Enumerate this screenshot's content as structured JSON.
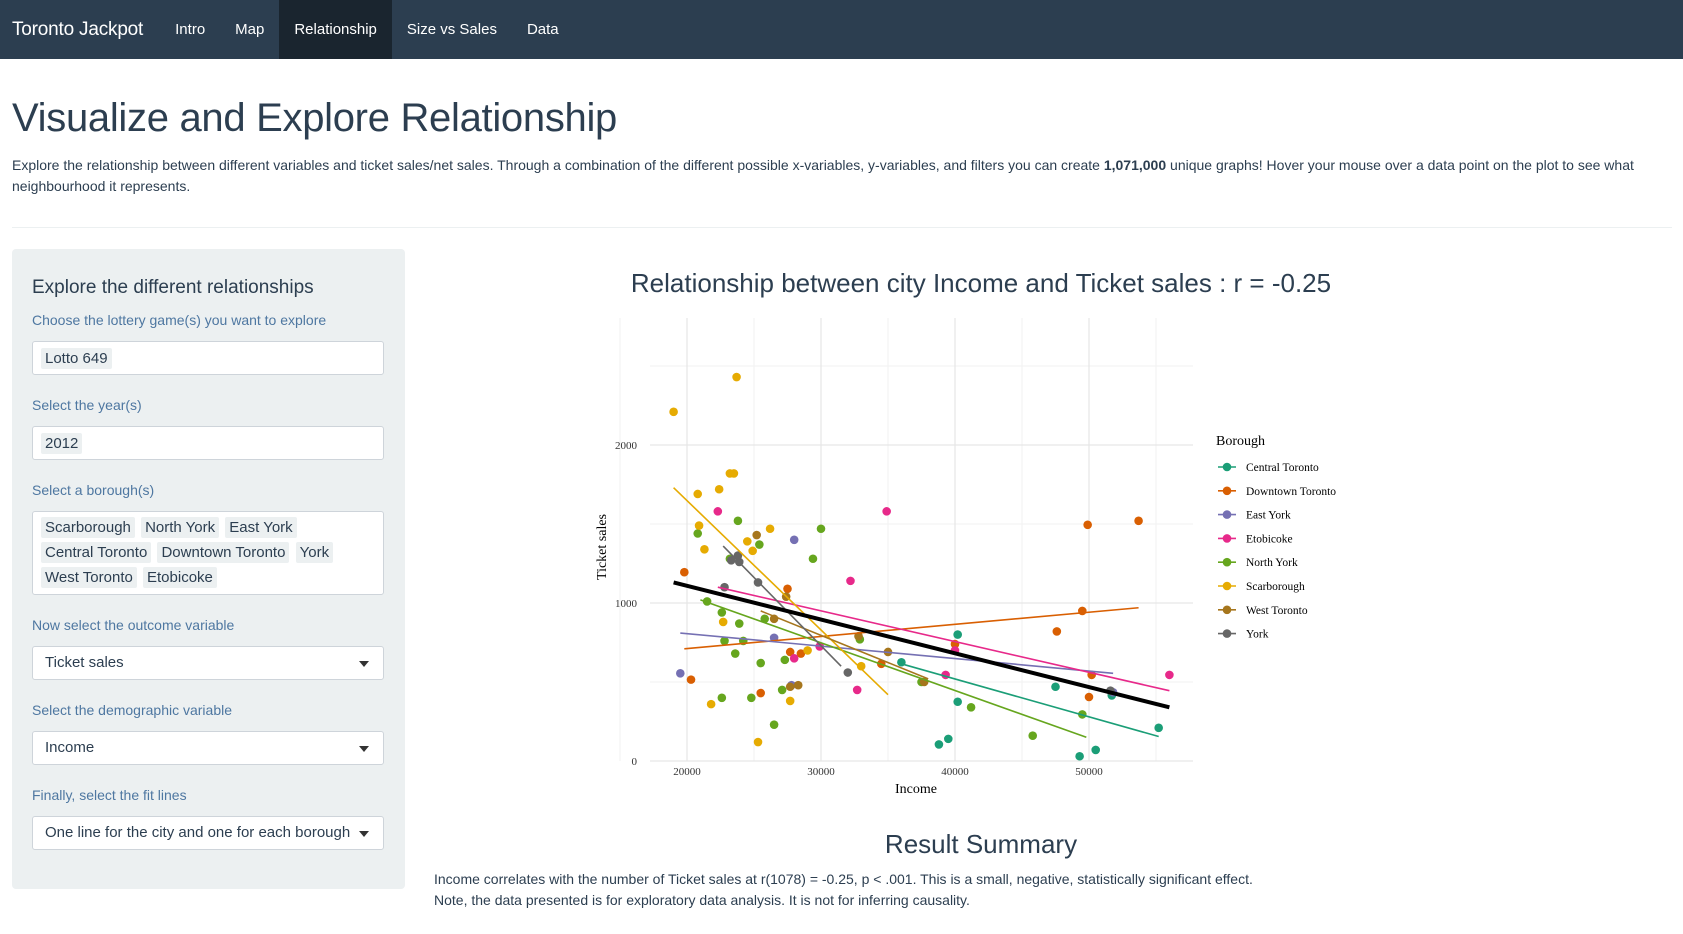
{
  "navbar": {
    "brand": "Toronto Jackpot",
    "items": [
      "Intro",
      "Map",
      "Relationship",
      "Size vs Sales",
      "Data"
    ],
    "active": "Relationship",
    "bg_color": "#2c3e50",
    "active_bg_color": "#1a252f"
  },
  "page": {
    "title": "Visualize and Explore Relationship",
    "intro_before": "Explore the relationship between different variables and ticket sales/net sales. Through a combination of the different possible x-variables, y-variables, and filters you can create ",
    "intro_bold": "1,071,000",
    "intro_after": " unique graphs! Hover your mouse over a data point on the plot to see what neighbourhood it represents."
  },
  "sidebar": {
    "title": "Explore the different relationships",
    "game_label": "Choose the lottery game(s) you want to explore",
    "games": [
      "Lotto 649"
    ],
    "year_label": "Select the year(s)",
    "years": [
      "2012"
    ],
    "borough_label": "Select a borough(s)",
    "boroughs": [
      "Scarborough",
      "North York",
      "East York",
      "Central Toronto",
      "Downtown Toronto",
      "York",
      "West Toronto",
      "Etobicoke"
    ],
    "outcome_label": "Now select the outcome variable",
    "outcome_value": "Ticket sales",
    "demographic_label": "Select the demographic variable",
    "demographic_value": "Income",
    "fit_label": "Finally, select the fit lines",
    "fit_value": "One line for the city and one for each borough"
  },
  "chart_data": {
    "type": "scatter",
    "title": "Relationship between city Income and Ticket sales : r = -0.25",
    "xlabel": "Income",
    "ylabel": "Ticket sales",
    "xlim": [
      16000,
      58000
    ],
    "ylim": [
      0,
      2800
    ],
    "xticks": [
      20000,
      30000,
      40000,
      50000
    ],
    "yticks": [
      0,
      1000,
      2000
    ],
    "grid": true,
    "legend_title": "Borough",
    "legend_position": "right",
    "city_fit": {
      "x": [
        19000,
        56000
      ],
      "y": [
        1130,
        340
      ],
      "color": "#000000"
    },
    "series": [
      {
        "name": "Central Toronto",
        "color": "#1b9e77",
        "points": [
          [
            36000,
            625
          ],
          [
            40200,
            800
          ],
          [
            40200,
            375
          ],
          [
            39500,
            140
          ],
          [
            38800,
            105
          ],
          [
            47500,
            470
          ],
          [
            51700,
            415
          ],
          [
            55200,
            210
          ],
          [
            50500,
            70
          ],
          [
            49300,
            30
          ]
        ],
        "fit": [
          [
            36000,
            615
          ],
          [
            55200,
            155
          ]
        ]
      },
      {
        "name": "Downtown Toronto",
        "color": "#d95f02",
        "points": [
          [
            19800,
            1195
          ],
          [
            20300,
            515
          ],
          [
            25500,
            430
          ],
          [
            27500,
            1090
          ],
          [
            27700,
            690
          ],
          [
            28500,
            680
          ],
          [
            34500,
            615
          ],
          [
            40000,
            740
          ],
          [
            47600,
            820
          ],
          [
            49500,
            950
          ],
          [
            49900,
            1495
          ],
          [
            50200,
            545
          ],
          [
            50000,
            405
          ],
          [
            53700,
            1520
          ]
        ],
        "fit": [
          [
            19800,
            710
          ],
          [
            53700,
            970
          ]
        ]
      },
      {
        "name": "East York",
        "color": "#7570b3",
        "points": [
          [
            19500,
            555
          ],
          [
            28000,
            1400
          ],
          [
            27800,
            480
          ],
          [
            26500,
            780
          ],
          [
            51800,
            435
          ]
        ],
        "fit": [
          [
            19500,
            810
          ],
          [
            51800,
            555
          ]
        ]
      },
      {
        "name": "Etobicoke",
        "color": "#e7298a",
        "points": [
          [
            22300,
            1580
          ],
          [
            28000,
            650
          ],
          [
            29900,
            725
          ],
          [
            32200,
            1140
          ],
          [
            32700,
            450
          ],
          [
            34900,
            1580
          ],
          [
            40000,
            700
          ],
          [
            39300,
            545
          ],
          [
            56000,
            545
          ]
        ],
        "fit": [
          [
            22300,
            1100
          ],
          [
            56000,
            445
          ]
        ]
      },
      {
        "name": "North York",
        "color": "#66a61e",
        "points": [
          [
            20800,
            1440
          ],
          [
            21500,
            1010
          ],
          [
            22600,
            940
          ],
          [
            23200,
            1280
          ],
          [
            23800,
            1520
          ],
          [
            23900,
            870
          ],
          [
            24200,
            760
          ],
          [
            24800,
            400
          ],
          [
            25400,
            1370
          ],
          [
            25500,
            620
          ],
          [
            25800,
            900
          ],
          [
            26500,
            230
          ],
          [
            27300,
            640
          ],
          [
            27100,
            450
          ],
          [
            29400,
            1280
          ],
          [
            30000,
            1470
          ],
          [
            32900,
            770
          ],
          [
            37500,
            500
          ],
          [
            41200,
            340
          ],
          [
            45800,
            160
          ],
          [
            49500,
            295
          ],
          [
            22800,
            760
          ],
          [
            23600,
            680
          ],
          [
            22600,
            400
          ]
        ],
        "fit": [
          [
            21000,
            1020
          ],
          [
            49800,
            150
          ]
        ]
      },
      {
        "name": "Scarborough",
        "color": "#e6ab02",
        "points": [
          [
            19000,
            2210
          ],
          [
            20800,
            1690
          ],
          [
            20900,
            1490
          ],
          [
            21300,
            1340
          ],
          [
            22400,
            1720
          ],
          [
            22700,
            880
          ],
          [
            23200,
            1820
          ],
          [
            23500,
            1820
          ],
          [
            23700,
            2430
          ],
          [
            24500,
            1390
          ],
          [
            24900,
            1330
          ],
          [
            26200,
            1470
          ],
          [
            27700,
            380
          ],
          [
            29000,
            700
          ],
          [
            33000,
            600
          ],
          [
            25300,
            120
          ],
          [
            21800,
            360
          ]
        ],
        "fit": [
          [
            19000,
            1730
          ],
          [
            35000,
            420
          ]
        ]
      },
      {
        "name": "West Toronto",
        "color": "#a6761d",
        "points": [
          [
            25200,
            1430
          ],
          [
            27400,
            1040
          ],
          [
            27700,
            470
          ],
          [
            28300,
            480
          ],
          [
            32800,
            790
          ],
          [
            35000,
            690
          ],
          [
            37700,
            500
          ],
          [
            26500,
            900
          ]
        ],
        "fit": [
          [
            25500,
            950
          ],
          [
            38000,
            520
          ]
        ]
      },
      {
        "name": "York",
        "color": "#666666",
        "points": [
          [
            22800,
            1100
          ],
          [
            23300,
            1270
          ],
          [
            23800,
            1300
          ],
          [
            23900,
            1260
          ],
          [
            25300,
            1130
          ],
          [
            32000,
            560
          ],
          [
            51600,
            445
          ]
        ],
        "fit": [
          [
            22700,
            1360
          ],
          [
            31500,
            600
          ]
        ]
      }
    ]
  },
  "summary": {
    "title": "Result Summary",
    "line1": "Income correlates with the number of Ticket sales at r(1078) = -0.25, p < .001. This is a small, negative, statistically significant effect.",
    "line2": "Note, the data presented is for exploratory data analysis. It is not for inferring causality."
  }
}
